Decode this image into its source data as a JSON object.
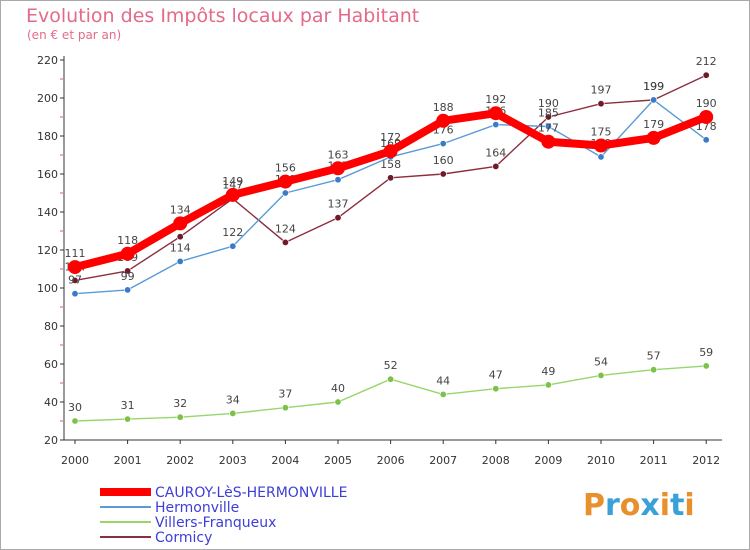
{
  "title": "Evolution des Impôts locaux par Habitant",
  "subtitle": "(en € et par an)",
  "brand": {
    "text": "Proxiti",
    "colors": [
      "#e8902b",
      "#3aa0d8",
      "#e8902b",
      "#3aa0d8",
      "#e8902b",
      "#3aa0d8",
      "#e8902b"
    ]
  },
  "chart_data": {
    "type": "line",
    "title": "Evolution des Impôts locaux par Habitant",
    "subtitle": "(en € et par an)",
    "xlabel": "",
    "ylabel": "",
    "ylim": [
      20,
      220
    ],
    "yticks": [
      20,
      40,
      60,
      80,
      100,
      120,
      140,
      160,
      180,
      200,
      220
    ],
    "x": [
      "2000",
      "2001",
      "2002",
      "2003",
      "2004",
      "2005",
      "2006",
      "2007",
      "2008",
      "2009",
      "2010",
      "2011",
      "2012"
    ],
    "grid": false,
    "legend": "bottom-left",
    "series": [
      {
        "name": "Cormicy",
        "color": "#8b2e3e",
        "dot": "#6e1a28",
        "values": [
          104,
          109,
          127,
          147,
          124,
          137,
          158,
          160,
          164,
          190,
          197,
          199,
          212
        ],
        "labels": [
          "104",
          "109",
          "",
          "147",
          "124",
          "137",
          "158",
          "160",
          "164",
          "190",
          "197",
          "199",
          "212"
        ]
      },
      {
        "name": "Hermonville",
        "color": "#5a9bd5",
        "dot": "#3a7bc8",
        "values": [
          97,
          99,
          114,
          122,
          150,
          157,
          169,
          176,
          186,
          185,
          169,
          199,
          178
        ],
        "labels": [
          "97",
          "99",
          "114",
          "122",
          "150",
          "157",
          "169",
          "176",
          "186",
          "185",
          "169",
          "199",
          "178"
        ]
      },
      {
        "name": "Villers-Franqueux",
        "color": "#98d66c",
        "dot": "#7cc24a",
        "values": [
          30,
          31,
          32,
          34,
          37,
          40,
          52,
          44,
          47,
          49,
          54,
          57,
          59
        ],
        "labels": [
          "30",
          "31",
          "32",
          "34",
          "37",
          "40",
          "52",
          "44",
          "47",
          "49",
          "54",
          "57",
          "59"
        ]
      },
      {
        "name": "CAUROY-LèS-HERMONVILLE",
        "color": "#ff0000",
        "dot": "#ff0000",
        "values": [
          111,
          118,
          134,
          149,
          156,
          163,
          172,
          188,
          192,
          177,
          175,
          179,
          190
        ],
        "labels": [
          "111",
          "118",
          "134",
          "149",
          "156",
          "163",
          "172",
          "188",
          "192",
          "177",
          "175",
          "179",
          "190"
        ]
      }
    ],
    "legend_order": [
      "CAUROY-LèS-HERMONVILLE",
      "Hermonville",
      "Villers-Franqueux",
      "Cormicy"
    ]
  }
}
